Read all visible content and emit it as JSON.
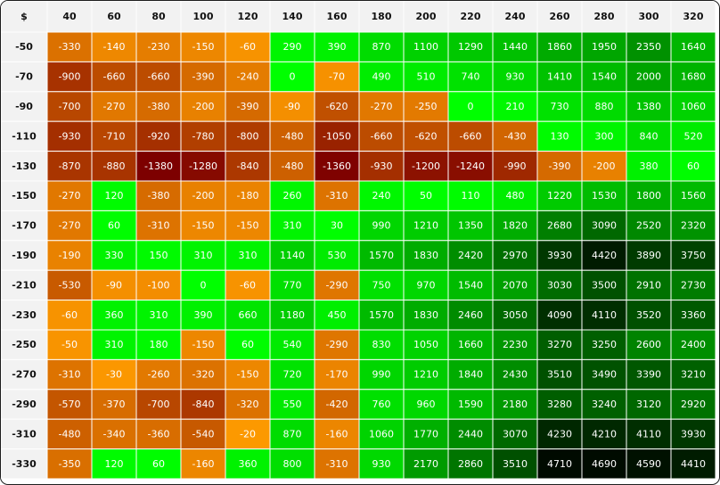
{
  "chart_data": {
    "type": "heatmap",
    "corner_label": "$",
    "x": [
      40,
      60,
      80,
      100,
      120,
      140,
      160,
      180,
      200,
      220,
      240,
      260,
      280,
      300,
      320
    ],
    "y": [
      -50,
      -70,
      -90,
      -110,
      -130,
      -150,
      -170,
      -190,
      -210,
      -230,
      -250,
      -270,
      -290,
      -310,
      -330
    ],
    "values": [
      [
        -330,
        -140,
        -230,
        -150,
        -60,
        290,
        390,
        870,
        1100,
        1290,
        1440,
        1860,
        1950,
        2350,
        1640
      ],
      [
        -900,
        -660,
        -660,
        -390,
        -240,
        0,
        -70,
        490,
        510,
        740,
        930,
        1410,
        1540,
        2000,
        1680
      ],
      [
        -700,
        -270,
        -380,
        -200,
        -390,
        -90,
        -620,
        -270,
        -250,
        0,
        210,
        730,
        880,
        1380,
        1060
      ],
      [
        -930,
        -710,
        -920,
        -780,
        -800,
        -480,
        -1050,
        -660,
        -620,
        -660,
        -430,
        130,
        300,
        840,
        520
      ],
      [
        -870,
        -880,
        -1380,
        -1280,
        -840,
        -480,
        -1360,
        -930,
        -1200,
        -1240,
        -990,
        -390,
        -200,
        380,
        60
      ],
      [
        -270,
        120,
        -380,
        -200,
        -180,
        260,
        -310,
        240,
        50,
        110,
        480,
        1220,
        1530,
        1800,
        1560
      ],
      [
        -270,
        60,
        -310,
        -150,
        -150,
        310,
        30,
        990,
        1210,
        1350,
        1820,
        2680,
        3090,
        2520,
        2320
      ],
      [
        -190,
        330,
        150,
        310,
        310,
        1140,
        530,
        1570,
        1830,
        2420,
        2970,
        3930,
        4420,
        3890,
        3750
      ],
      [
        -530,
        -90,
        -100,
        0,
        -60,
        770,
        -290,
        750,
        970,
        1540,
        2070,
        3030,
        3500,
        2910,
        2730
      ],
      [
        -60,
        360,
        310,
        390,
        660,
        1180,
        450,
        1570,
        1830,
        2460,
        3050,
        4090,
        4110,
        3520,
        3360
      ],
      [
        -50,
        310,
        180,
        -150,
        60,
        540,
        -290,
        830,
        1050,
        1660,
        2230,
        3270,
        3250,
        2600,
        2400
      ],
      [
        -310,
        -30,
        -260,
        -320,
        -150,
        720,
        -170,
        990,
        1210,
        1840,
        2430,
        3510,
        3490,
        3390,
        3210
      ],
      [
        -570,
        -370,
        -700,
        -840,
        -320,
        550,
        -420,
        760,
        960,
        1590,
        2180,
        3280,
        3240,
        3120,
        2920
      ],
      [
        -480,
        -340,
        -360,
        -540,
        -20,
        870,
        -160,
        1060,
        1770,
        2440,
        3070,
        4230,
        4210,
        4110,
        3930
      ],
      [
        -350,
        120,
        60,
        -160,
        360,
        800,
        -310,
        930,
        2170,
        2860,
        3510,
        4710,
        4690,
        4590,
        4410
      ]
    ],
    "colors": {
      "header_bg": "#f2f2f2",
      "grid_line": "#ffffff",
      "neg_light": "#ff9c00",
      "neg_dark": "#7d0000",
      "pos_light": "#00ff00",
      "pos_dark": "#000000"
    }
  }
}
